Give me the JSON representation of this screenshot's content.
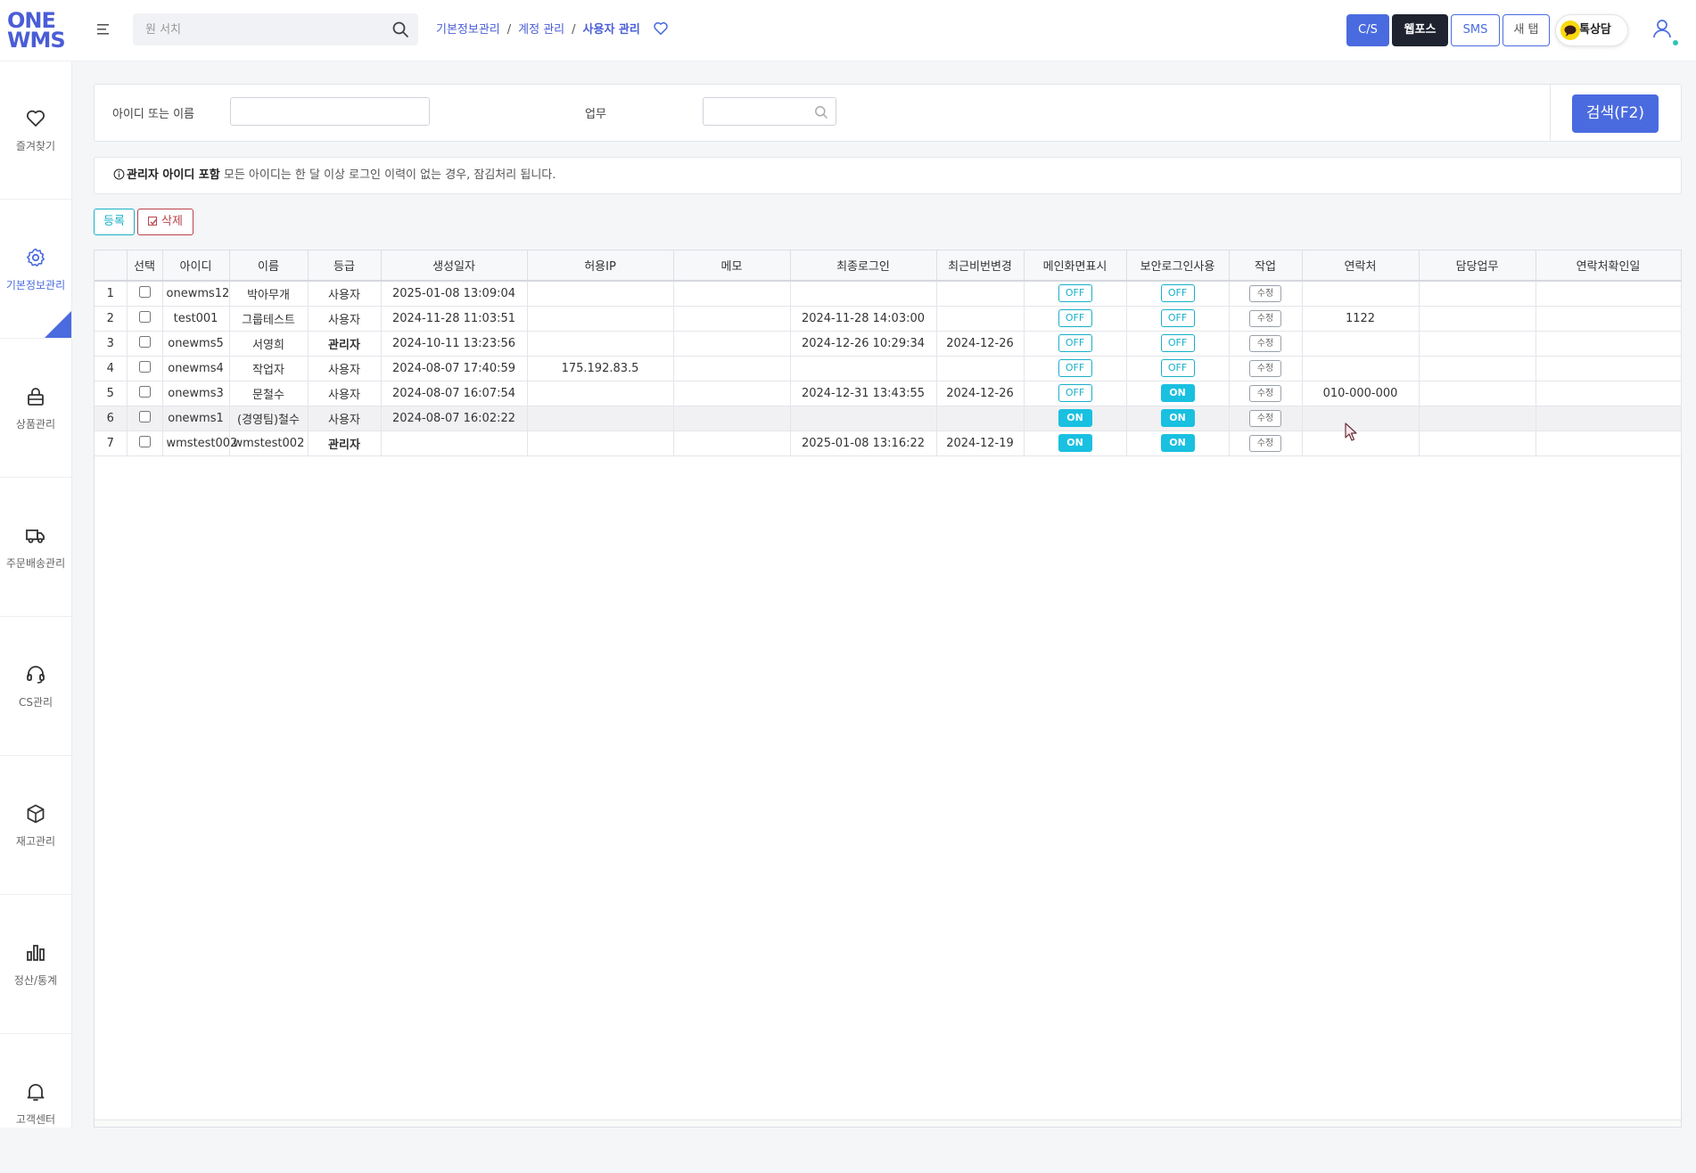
{
  "logo": {
    "line1": "ONE",
    "line2": "WMS"
  },
  "search": {
    "placeholder": "원 서치",
    "value": ""
  },
  "breadcrumb": {
    "items": [
      "기본정보관리",
      "계정 관리",
      "사용자 관리"
    ],
    "separator": "/"
  },
  "header_buttons": {
    "cs": "C/S",
    "webforce": "웹포스",
    "sms": "SMS",
    "new_tab": "새 탭",
    "kakao": "톡상담"
  },
  "sidebar": {
    "items": [
      {
        "label": "즐겨찾기",
        "icon": "heart-icon"
      },
      {
        "label": "기본정보관리",
        "icon": "gear-icon",
        "active": true
      },
      {
        "label": "상품관리",
        "icon": "store-icon"
      },
      {
        "label": "주문배송관리",
        "icon": "truck-icon"
      },
      {
        "label": "CS관리",
        "icon": "headset-icon"
      },
      {
        "label": "재고관리",
        "icon": "box-icon"
      },
      {
        "label": "정산/통계",
        "icon": "bar-chart-icon"
      },
      {
        "label": "고객센터",
        "icon": "bell-icon"
      }
    ]
  },
  "filter": {
    "id_name_label": "아이디 또는 이름",
    "id_name_value": "",
    "task_label": "업무",
    "task_value": "",
    "search_button": "검색(F2)"
  },
  "notice": {
    "bold": "관리자 아이디 포함",
    "text": " 모든 아이디는 한 달 이상 로그인 이력이 없는 경우, 잠김처리 됩니다."
  },
  "actions": {
    "register": "등록",
    "delete": "삭제"
  },
  "table": {
    "columns": [
      "",
      "선택",
      "아이디",
      "이름",
      "등급",
      "생성일자",
      "허용IP",
      "메모",
      "최종로그인",
      "최근비번변경",
      "메인화면표시",
      "보안로그인사용",
      "작업",
      "연락처",
      "담당업무",
      "연락처확인일"
    ],
    "edit_label": "수정",
    "rows": [
      {
        "no": "1",
        "id": "onewms12",
        "name": "박아무개",
        "grade": "사용자",
        "created": "2025-01-08 13:09:04",
        "ip": "",
        "memo": "",
        "last_login": "",
        "pw_changed": "",
        "main_display": "OFF",
        "secure_login": "OFF",
        "contact": "",
        "duty": "",
        "contact_checked": ""
      },
      {
        "no": "2",
        "id": "test001",
        "name": "그룹테스트",
        "grade": "사용자",
        "created": "2024-11-28 11:03:51",
        "ip": "",
        "memo": "",
        "last_login": "2024-11-28 14:03:00",
        "pw_changed": "",
        "main_display": "OFF",
        "secure_login": "OFF",
        "contact": "1122",
        "duty": "",
        "contact_checked": ""
      },
      {
        "no": "3",
        "id": "onewms5",
        "name": "서영희",
        "grade": "관리자",
        "created": "2024-10-11 13:23:56",
        "ip": "",
        "memo": "",
        "last_login": "2024-12-26 10:29:34",
        "pw_changed": "2024-12-26",
        "main_display": "OFF",
        "secure_login": "OFF",
        "contact": "",
        "duty": "",
        "contact_checked": ""
      },
      {
        "no": "4",
        "id": "onewms4",
        "name": "작업자",
        "grade": "사용자",
        "created": "2024-08-07 17:40:59",
        "ip": "175.192.83.5",
        "memo": "",
        "last_login": "",
        "pw_changed": "",
        "main_display": "OFF",
        "secure_login": "OFF",
        "contact": "",
        "duty": "",
        "contact_checked": ""
      },
      {
        "no": "5",
        "id": "onewms3",
        "name": "문철수",
        "grade": "사용자",
        "created": "2024-08-07 16:07:54",
        "ip": "",
        "memo": "",
        "last_login": "2024-12-31 13:43:55",
        "pw_changed": "2024-12-26",
        "main_display": "OFF",
        "secure_login": "ON",
        "contact": "010-000-000",
        "duty": "",
        "contact_checked": ""
      },
      {
        "no": "6",
        "id": "onewms1",
        "name": "(경영팀)철수",
        "grade": "사용자",
        "created": "2024-08-07 16:02:22",
        "ip": "",
        "memo": "",
        "last_login": "",
        "pw_changed": "",
        "main_display": "ON",
        "secure_login": "ON",
        "contact": "",
        "duty": "",
        "contact_checked": ""
      },
      {
        "no": "7",
        "id": "wmstest002",
        "name": "wmstest002",
        "grade": "관리자",
        "created": "",
        "ip": "",
        "memo": "",
        "last_login": "2025-01-08 13:16:22",
        "pw_changed": "2024-12-19",
        "main_display": "ON",
        "secure_login": "ON",
        "contact": "",
        "duty": "",
        "contact_checked": ""
      }
    ]
  },
  "colors": {
    "accent": "#4a6bdf",
    "toggle": "#19c0e0",
    "delete": "#b8434b"
  }
}
